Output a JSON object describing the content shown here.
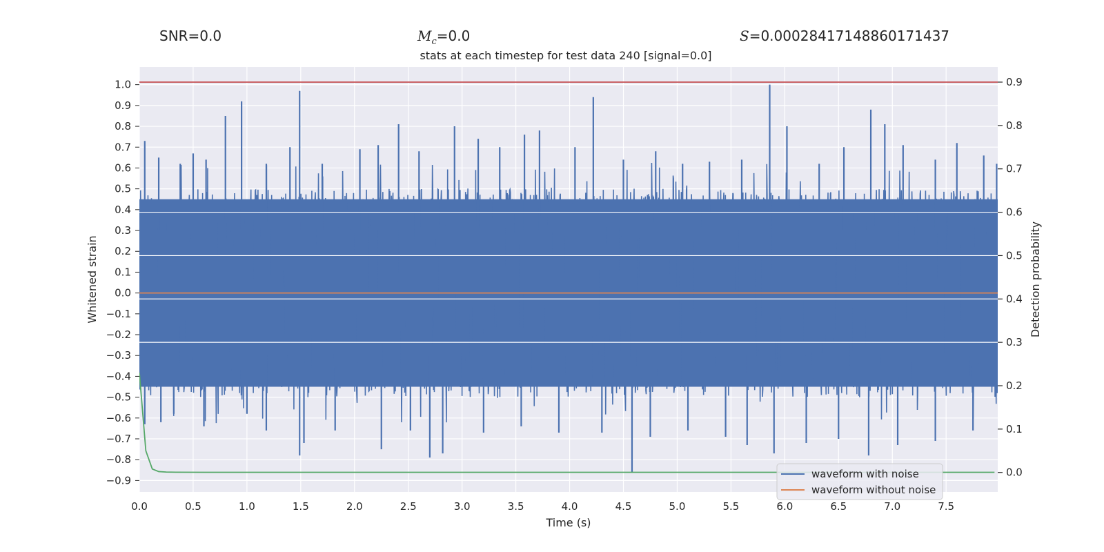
{
  "header": {
    "snr_text": "SNR=0.0",
    "mc_symbol": "M",
    "mc_subscript": "c",
    "mc_value": "=0.0",
    "s_symbol": "S",
    "s_value": "=0.00028417148860171437"
  },
  "chart_data": {
    "type": "line",
    "title": "stats at each timestep for test data 240 [signal=0.0]",
    "xlabel": "Time (s)",
    "ylabel": "Whitened strain",
    "y2label": "Detection probability",
    "xlim": [
      0.0,
      7.98
    ],
    "ylim": [
      -0.955,
      1.085
    ],
    "y2lim": [
      -0.045,
      0.935
    ],
    "x_ticks": [
      "0.0",
      "0.5",
      "1.0",
      "1.5",
      "2.0",
      "2.5",
      "3.0",
      "3.5",
      "4.0",
      "4.5",
      "5.0",
      "5.5",
      "6.0",
      "6.5",
      "7.0",
      "7.5"
    ],
    "y_ticks": [
      "1.0",
      "0.9",
      "0.8",
      "0.7",
      "0.6",
      "0.5",
      "0.4",
      "0.3",
      "0.2",
      "0.1",
      "0.0",
      "−0.1",
      "−0.2",
      "−0.3",
      "−0.4",
      "−0.5",
      "−0.6",
      "−0.7",
      "−0.8",
      "−0.9"
    ],
    "y2_ticks": [
      "0.9",
      "0.8",
      "0.7",
      "0.6",
      "0.5",
      "0.4",
      "0.3",
      "0.2",
      "0.1",
      "0.0"
    ],
    "threshold": {
      "value": 0.9,
      "axis": "right",
      "color": "#c44e52"
    },
    "series": [
      {
        "name": "waveform with noise",
        "color": "#4c72b0",
        "axis": "left",
        "fill_range": [
          -0.45,
          0.45
        ],
        "peaks": [
          [
            0.05,
            0.73
          ],
          [
            0.18,
            0.65
          ],
          [
            0.38,
            0.62
          ],
          [
            0.5,
            0.67
          ],
          [
            0.62,
            0.64
          ],
          [
            0.8,
            0.85
          ],
          [
            0.95,
            0.92
          ],
          [
            1.18,
            0.62
          ],
          [
            1.4,
            0.7
          ],
          [
            1.49,
            0.97
          ],
          [
            1.7,
            0.62
          ],
          [
            2.05,
            0.69
          ],
          [
            2.22,
            0.71
          ],
          [
            2.41,
            0.81
          ],
          [
            2.6,
            0.68
          ],
          [
            2.93,
            0.8
          ],
          [
            3.15,
            0.74
          ],
          [
            3.35,
            0.7
          ],
          [
            3.58,
            0.76
          ],
          [
            3.72,
            0.78
          ],
          [
            4.05,
            0.7
          ],
          [
            4.22,
            0.94
          ],
          [
            4.5,
            0.64
          ],
          [
            4.8,
            0.68
          ],
          [
            5.05,
            0.62
          ],
          [
            5.3,
            0.63
          ],
          [
            5.6,
            0.64
          ],
          [
            5.86,
            1.0
          ],
          [
            6.02,
            0.8
          ],
          [
            6.32,
            0.62
          ],
          [
            6.55,
            0.7
          ],
          [
            6.8,
            0.88
          ],
          [
            6.93,
            0.81
          ],
          [
            7.1,
            0.71
          ],
          [
            7.4,
            0.64
          ],
          [
            7.6,
            0.72
          ],
          [
            7.85,
            0.66
          ],
          [
            7.97,
            0.62
          ]
        ],
        "troughs": [
          [
            0.05,
            -0.63
          ],
          [
            0.2,
            -0.62
          ],
          [
            0.32,
            -0.58
          ],
          [
            0.6,
            -0.64
          ],
          [
            1.0,
            -0.58
          ],
          [
            1.18,
            -0.66
          ],
          [
            1.49,
            -0.78
          ],
          [
            1.53,
            -0.72
          ],
          [
            1.82,
            -0.66
          ],
          [
            2.25,
            -0.75
          ],
          [
            2.52,
            -0.66
          ],
          [
            2.7,
            -0.79
          ],
          [
            2.82,
            -0.77
          ],
          [
            3.2,
            -0.67
          ],
          [
            3.55,
            -0.64
          ],
          [
            3.9,
            -0.67
          ],
          [
            4.3,
            -0.67
          ],
          [
            4.58,
            -0.86
          ],
          [
            4.75,
            -0.69
          ],
          [
            5.1,
            -0.66
          ],
          [
            5.45,
            -0.69
          ],
          [
            5.65,
            -0.73
          ],
          [
            5.9,
            -0.77
          ],
          [
            6.2,
            -0.72
          ],
          [
            6.5,
            -0.7
          ],
          [
            6.78,
            -0.78
          ],
          [
            7.05,
            -0.73
          ],
          [
            7.4,
            -0.71
          ],
          [
            7.75,
            -0.66
          ]
        ]
      },
      {
        "name": "waveform without noise",
        "color": "#dd8452",
        "axis": "left",
        "x": [
          0.0,
          7.98
        ],
        "y": [
          0.0,
          0.0
        ]
      },
      {
        "name": "Detection probability",
        "color": "#55a868",
        "axis": "right",
        "x": [
          0.0,
          0.06,
          0.12,
          0.18,
          0.25,
          0.35,
          0.6,
          1.0,
          7.95
        ],
        "y": [
          0.23,
          0.05,
          0.008,
          0.002,
          0.001,
          0.0005,
          0.0003,
          0.0003,
          0.0003
        ]
      }
    ],
    "legend": {
      "location": "lower right",
      "entries": [
        "waveform with noise",
        "waveform without noise"
      ]
    },
    "grid": true,
    "style": {
      "background": "#eaeaf2",
      "grid": "#ffffff"
    }
  }
}
